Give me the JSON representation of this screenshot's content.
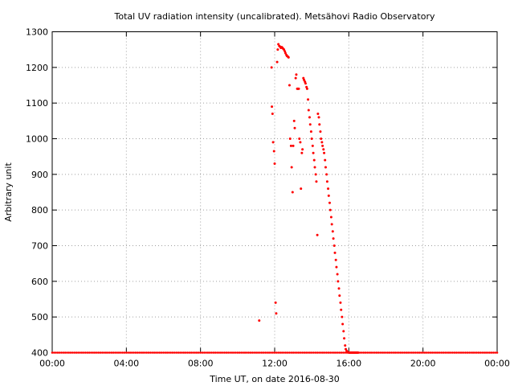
{
  "chart_data": {
    "type": "scatter",
    "title": "Total UV radiation intensity (uncalibrated). Metsähovi Radio Observatory",
    "xlabel": "Time UT, on date 2016-08-30",
    "ylabel": "Arbitrary unit",
    "xlim": [
      "00:00",
      "24:00"
    ],
    "ylim": [
      400,
      1300
    ],
    "x_ticks": [
      "00:00",
      "04:00",
      "08:00",
      "12:00",
      "16:00",
      "20:00",
      "00:00"
    ],
    "y_ticks": [
      400,
      500,
      600,
      700,
      800,
      900,
      1000,
      1100,
      1200,
      1300
    ],
    "grid": true,
    "grid_style": "dotted",
    "marker_color": "#ff0000",
    "series": [
      {
        "x": [
          "11:10",
          "11:50",
          "11:51",
          "11:53",
          "11:55",
          "11:58",
          "12:00",
          "12:03",
          "12:05",
          "12:08",
          "12:10",
          "12:12",
          "12:15",
          "12:18",
          "12:20",
          "12:23",
          "12:25",
          "12:28",
          "12:30",
          "12:33",
          "12:35",
          "12:38",
          "12:40",
          "12:43",
          "12:45",
          "12:48",
          "12:50",
          "12:53",
          "12:55",
          "12:58",
          "13:00",
          "13:03",
          "13:05",
          "13:08",
          "13:10",
          "13:13",
          "13:15",
          "13:18",
          "13:20",
          "13:23",
          "13:25",
          "13:28",
          "13:30",
          "13:33",
          "13:35",
          "13:38",
          "13:40",
          "13:43",
          "13:45",
          "13:48",
          "13:50",
          "13:53",
          "13:55",
          "13:58",
          "14:00",
          "14:03",
          "14:05",
          "14:08",
          "14:10",
          "14:13",
          "14:15",
          "14:18",
          "14:20",
          "14:23",
          "14:25",
          "14:28",
          "14:30",
          "14:33",
          "14:35",
          "14:38",
          "14:40",
          "14:43",
          "14:45",
          "14:48",
          "14:50",
          "14:53",
          "14:55",
          "14:58",
          "15:00",
          "15:03",
          "15:05",
          "15:08",
          "15:10",
          "15:13",
          "15:15",
          "15:18",
          "15:20",
          "15:23",
          "15:25",
          "15:28",
          "15:30",
          "15:33",
          "15:35",
          "15:38",
          "15:40",
          "15:43",
          "15:45",
          "15:48",
          "15:50",
          "15:53",
          "15:55",
          "15:58",
          "16:00",
          "16:03",
          "16:05",
          "16:08",
          "16:10",
          "16:13",
          "16:15",
          "16:18",
          "16:20",
          "16:23",
          "16:25",
          "16:28",
          "16:30"
        ],
        "y": [
          490,
          1200,
          1090,
          1070,
          990,
          965,
          930,
          540,
          510,
          1215,
          1250,
          1265,
          1260,
          1258,
          1255,
          1257,
          1255,
          1252,
          1250,
          1245,
          1240,
          1235,
          1232,
          1230,
          1228,
          1150,
          1000,
          980,
          920,
          850,
          980,
          1050,
          1030,
          1170,
          1180,
          1140,
          1140,
          1140,
          1000,
          990,
          860,
          960,
          970,
          1170,
          1165,
          1160,
          1155,
          1145,
          1140,
          1110,
          1080,
          1060,
          1040,
          1020,
          1000,
          980,
          960,
          940,
          920,
          900,
          880,
          730,
          1070,
          1060,
          1040,
          1020,
          1000,
          990,
          980,
          970,
          960,
          940,
          920,
          900,
          880,
          860,
          840,
          820,
          800,
          780,
          760,
          740,
          720,
          700,
          680,
          660,
          640,
          620,
          600,
          580,
          560,
          540,
          520,
          500,
          480,
          460,
          440,
          420,
          410,
          405,
          402,
          401,
          400,
          400,
          400,
          400,
          400,
          400,
          400,
          400,
          400,
          400,
          400,
          400,
          400
        ]
      }
    ]
  }
}
